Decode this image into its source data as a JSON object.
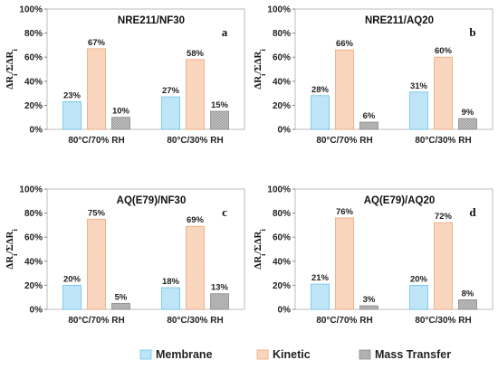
{
  "chart_data": [
    {
      "type": "bar",
      "title": "NRE211/NF30",
      "panel_label": "a",
      "ylabel": "ΔRi/ΣΔRi",
      "yticks": [
        "0%",
        "20%",
        "40%",
        "60%",
        "80%",
        "100%"
      ],
      "ylim": [
        0,
        100
      ],
      "categories": [
        "80°C/70% RH",
        "80°C/30% RH"
      ],
      "series": [
        {
          "name": "Membrane",
          "values": [
            23,
            27
          ],
          "labels": [
            "23%",
            "27%"
          ]
        },
        {
          "name": "Kinetic",
          "values": [
            67,
            58
          ],
          "labels": [
            "67%",
            "58%"
          ]
        },
        {
          "name": "Mass Transfer",
          "values": [
            10,
            15
          ],
          "labels": [
            "10%",
            "15%"
          ]
        }
      ],
      "grid": false
    },
    {
      "type": "bar",
      "title": "NRE211/AQ20",
      "panel_label": "b",
      "ylabel": "ΔRi/ΣΔRi",
      "yticks": [
        "0%",
        "20%",
        "40%",
        "60%",
        "80%",
        "100%"
      ],
      "ylim": [
        0,
        100
      ],
      "categories": [
        "80°C/70% RH",
        "80°C/30% RH"
      ],
      "series": [
        {
          "name": "Membrane",
          "values": [
            28,
            31
          ],
          "labels": [
            "28%",
            "31%"
          ]
        },
        {
          "name": "Kinetic",
          "values": [
            66,
            60
          ],
          "labels": [
            "66%",
            "60%"
          ]
        },
        {
          "name": "Mass Transfer",
          "values": [
            6,
            9
          ],
          "labels": [
            "6%",
            "9%"
          ]
        }
      ],
      "grid": false
    },
    {
      "type": "bar",
      "title": "AQ(E79)/NF30",
      "panel_label": "c",
      "ylabel": "ΔRi/ΣΔRi",
      "yticks": [
        "0%",
        "20%",
        "40%",
        "60%",
        "80%",
        "100%"
      ],
      "ylim": [
        0,
        100
      ],
      "categories": [
        "80°C/70% RH",
        "80°C/30% RH"
      ],
      "series": [
        {
          "name": "Membrane",
          "values": [
            20,
            18
          ],
          "labels": [
            "20%",
            "18%"
          ]
        },
        {
          "name": "Kinetic",
          "values": [
            75,
            69
          ],
          "labels": [
            "75%",
            "69%"
          ]
        },
        {
          "name": "Mass Transfer",
          "values": [
            5,
            13
          ],
          "labels": [
            "5%",
            "13%"
          ]
        }
      ],
      "grid": false
    },
    {
      "type": "bar",
      "title": "AQ(E79)/AQ20",
      "panel_label": "d",
      "ylabel": "ΔRi/ΣΔRi",
      "yticks": [
        "0%",
        "20%",
        "40%",
        "60%",
        "80%",
        "100%"
      ],
      "ylim": [
        0,
        100
      ],
      "categories": [
        "80°C/70% RH",
        "80°C/30% RH"
      ],
      "series": [
        {
          "name": "Membrane",
          "values": [
            21,
            20
          ],
          "labels": [
            "21%",
            "20%"
          ]
        },
        {
          "name": "Kinetic",
          "values": [
            76,
            72
          ],
          "labels": [
            "76%",
            "72%"
          ]
        },
        {
          "name": "Mass Transfer",
          "values": [
            3,
            8
          ],
          "labels": [
            "3%",
            "8%"
          ]
        }
      ],
      "grid": false
    }
  ],
  "legend": {
    "placement": "bottom",
    "items": [
      {
        "name": "Membrane",
        "color": "#a9dcf4",
        "stroke": "#6ec3ea"
      },
      {
        "name": "Kinetic",
        "color": "#f7c9a8",
        "stroke": "#efa57a"
      },
      {
        "name": "Mass Transfer",
        "color": "#a7a7a7",
        "stroke": "#8a8a8a"
      }
    ]
  }
}
